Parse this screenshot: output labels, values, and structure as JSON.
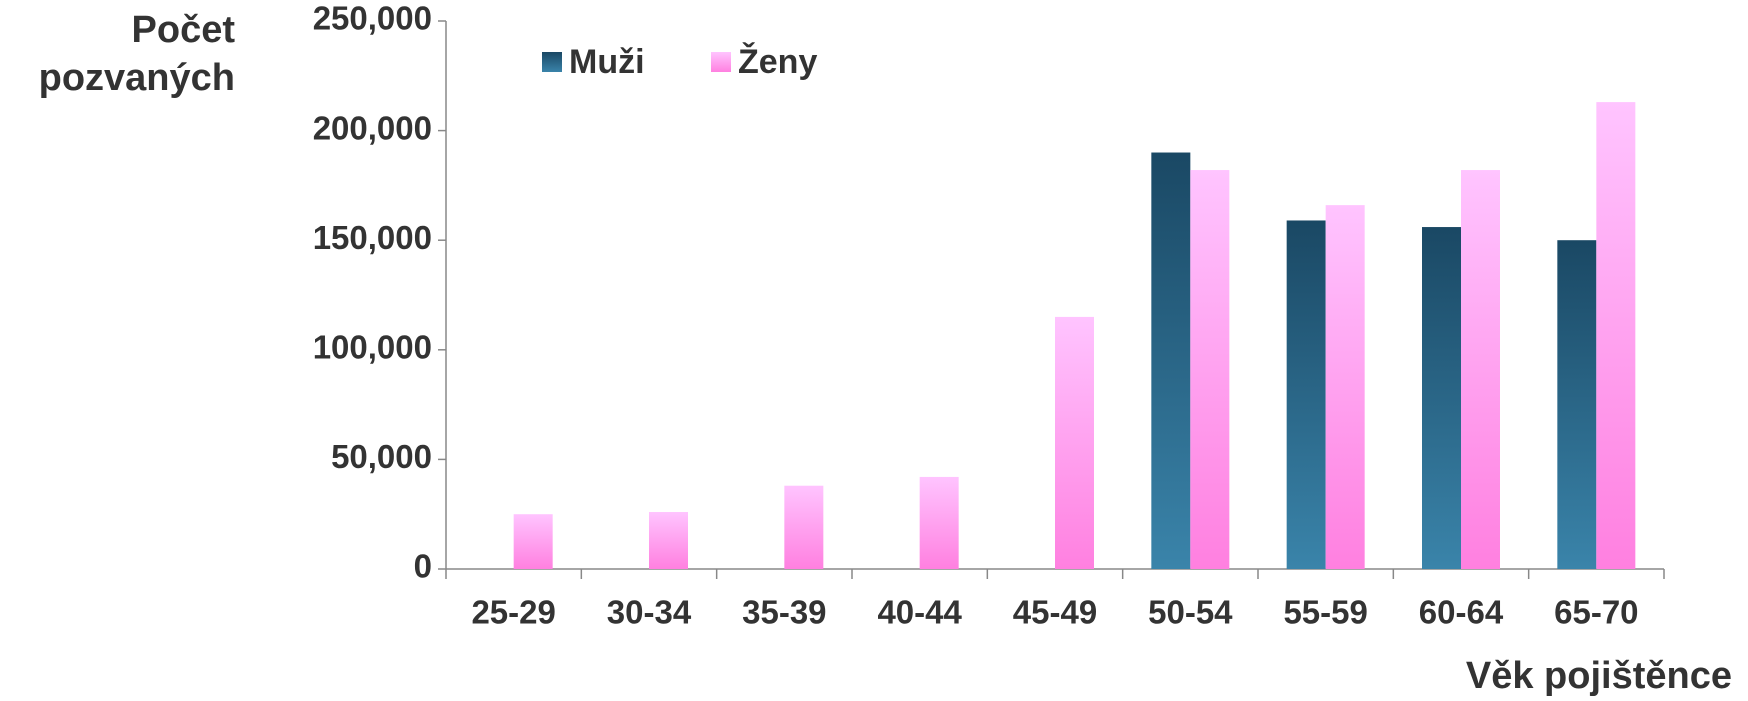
{
  "chart_data": {
    "type": "bar",
    "ylabel": "Počet pozvaných",
    "xlabel": "Věk pojištěnce",
    "categories": [
      "25-29",
      "30-34",
      "35-39",
      "40-44",
      "45-49",
      "50-54",
      "55-59",
      "60-64",
      "65-70"
    ],
    "series": [
      {
        "name": "Muži",
        "color": "#2a6a8e",
        "values": [
          0,
          0,
          0,
          0,
          0,
          190000,
          159000,
          156000,
          150000
        ]
      },
      {
        "name": "Ženy",
        "color": "#ff9ce8",
        "values": [
          25000,
          26000,
          38000,
          42000,
          115000,
          182000,
          166000,
          182000,
          213000
        ]
      }
    ],
    "ylim": [
      0,
      250000
    ],
    "yticks": [
      {
        "value": 0,
        "label": "0"
      },
      {
        "value": 50000,
        "label": "50,000"
      },
      {
        "value": 100000,
        "label": "100,000"
      },
      {
        "value": 150000,
        "label": "150,000"
      },
      {
        "value": 200000,
        "label": "200,000"
      },
      {
        "value": 250000,
        "label": "250,000"
      }
    ],
    "legend": "top-left",
    "grid": false
  }
}
